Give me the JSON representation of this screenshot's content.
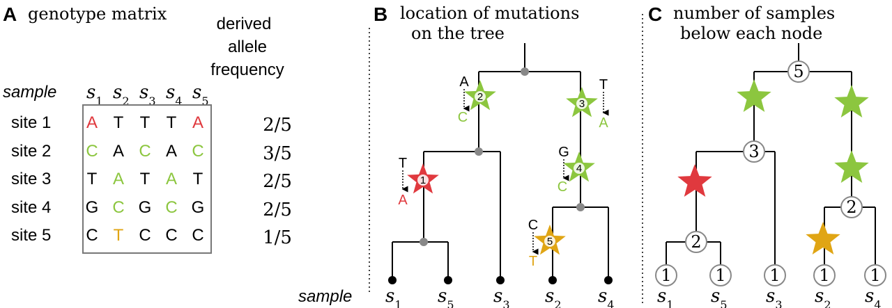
{
  "colors": {
    "red": "#e0393e",
    "green": "#8cc63f",
    "orange": "#e0a514",
    "black": "#000000",
    "gray": "#888888"
  },
  "panelA": {
    "letter": "A",
    "title": "genotype matrix",
    "sample_label": "sample",
    "samples": [
      "s",
      "s",
      "s",
      "s",
      "s"
    ],
    "sample_subscripts": [
      "1",
      "2",
      "3",
      "4",
      "5"
    ],
    "freq_header": [
      "derived",
      "allele",
      "frequency"
    ],
    "rows": [
      {
        "site": "site 1",
        "alleles": [
          "A",
          "T",
          "T",
          "T",
          "A"
        ],
        "colors": [
          "red",
          "black",
          "black",
          "black",
          "red"
        ],
        "freq": "2/5"
      },
      {
        "site": "site 2",
        "alleles": [
          "C",
          "A",
          "C",
          "A",
          "C"
        ],
        "colors": [
          "green",
          "black",
          "green",
          "black",
          "green"
        ],
        "freq": "3/5"
      },
      {
        "site": "site 3",
        "alleles": [
          "T",
          "A",
          "T",
          "A",
          "T"
        ],
        "colors": [
          "black",
          "green",
          "black",
          "green",
          "black"
        ],
        "freq": "2/5"
      },
      {
        "site": "site 4",
        "alleles": [
          "G",
          "C",
          "G",
          "C",
          "G"
        ],
        "colors": [
          "black",
          "green",
          "black",
          "green",
          "black"
        ],
        "freq": "2/5"
      },
      {
        "site": "site 5",
        "alleles": [
          "C",
          "T",
          "C",
          "C",
          "C"
        ],
        "colors": [
          "black",
          "orange",
          "black",
          "black",
          "black"
        ],
        "freq": "1/5"
      }
    ]
  },
  "panelB": {
    "letter": "B",
    "title_line1": "location of mutations",
    "title_line2": "on the tree",
    "sample_label": "sample",
    "tips": [
      {
        "name": "s",
        "sub": "1"
      },
      {
        "name": "s",
        "sub": "5"
      },
      {
        "name": "s",
        "sub": "3"
      },
      {
        "name": "s",
        "sub": "2"
      },
      {
        "name": "s",
        "sub": "4"
      }
    ],
    "mutations": [
      {
        "number": "1",
        "from": "T",
        "to": "A",
        "color": "red"
      },
      {
        "number": "2",
        "from": "A",
        "to": "C",
        "color": "green"
      },
      {
        "number": "3",
        "from": "T",
        "to": "A",
        "color": "green"
      },
      {
        "number": "4",
        "from": "G",
        "to": "C",
        "color": "green"
      },
      {
        "number": "5",
        "from": "C",
        "to": "T",
        "color": "orange"
      }
    ]
  },
  "panelC": {
    "letter": "C",
    "title_line1": "number of samples",
    "title_line2": "below each node",
    "root_count": "5",
    "left_internal_count": "3",
    "right_internal_count": "2",
    "s1s5_count": "2",
    "tips": [
      {
        "name": "s",
        "sub": "1",
        "count": "1"
      },
      {
        "name": "s",
        "sub": "5",
        "count": "1"
      },
      {
        "name": "s",
        "sub": "3",
        "count": "1"
      },
      {
        "name": "s",
        "sub": "2",
        "count": "1"
      },
      {
        "name": "s",
        "sub": "4",
        "count": "1"
      }
    ]
  }
}
